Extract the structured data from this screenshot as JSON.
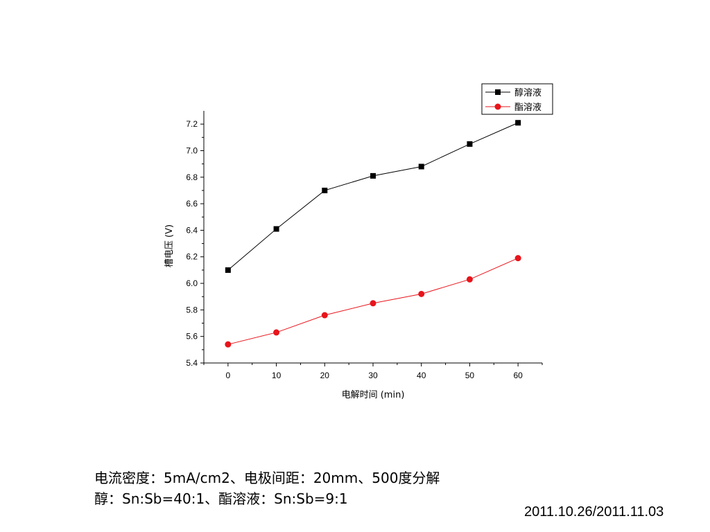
{
  "chart_data": {
    "type": "line",
    "x": [
      0,
      10,
      20,
      30,
      40,
      50,
      60
    ],
    "xlim": [
      -5,
      65
    ],
    "ylim": [
      5.4,
      7.3
    ],
    "xticks": [
      "0",
      "10",
      "20",
      "30",
      "40",
      "50",
      "60"
    ],
    "yticks": [
      "5.4",
      "5.6",
      "5.8",
      "6.0",
      "6.2",
      "6.4",
      "6.6",
      "6.8",
      "7.0",
      "7.2"
    ],
    "xlabel": "电解时间 (min)",
    "ylabel": "槽电压 (V)",
    "legend_position": "top-right",
    "series": [
      {
        "name": "醇溶液",
        "color": "#000000",
        "marker": "square",
        "values": [
          6.1,
          6.41,
          6.7,
          6.81,
          6.88,
          7.05,
          7.21
        ]
      },
      {
        "name": "酯溶液",
        "color": "#e8141b",
        "marker": "circle",
        "values": [
          5.54,
          5.63,
          5.76,
          5.85,
          5.92,
          6.03,
          6.19
        ]
      }
    ]
  },
  "caption": {
    "line1": "电流密度：5mA/cm2、电极间距：20mm、500度分解",
    "line2": "醇：Sn:Sb=40:1、酯溶液：Sn:Sb=9:1"
  },
  "date": "2011.10.26/2011.11.03"
}
